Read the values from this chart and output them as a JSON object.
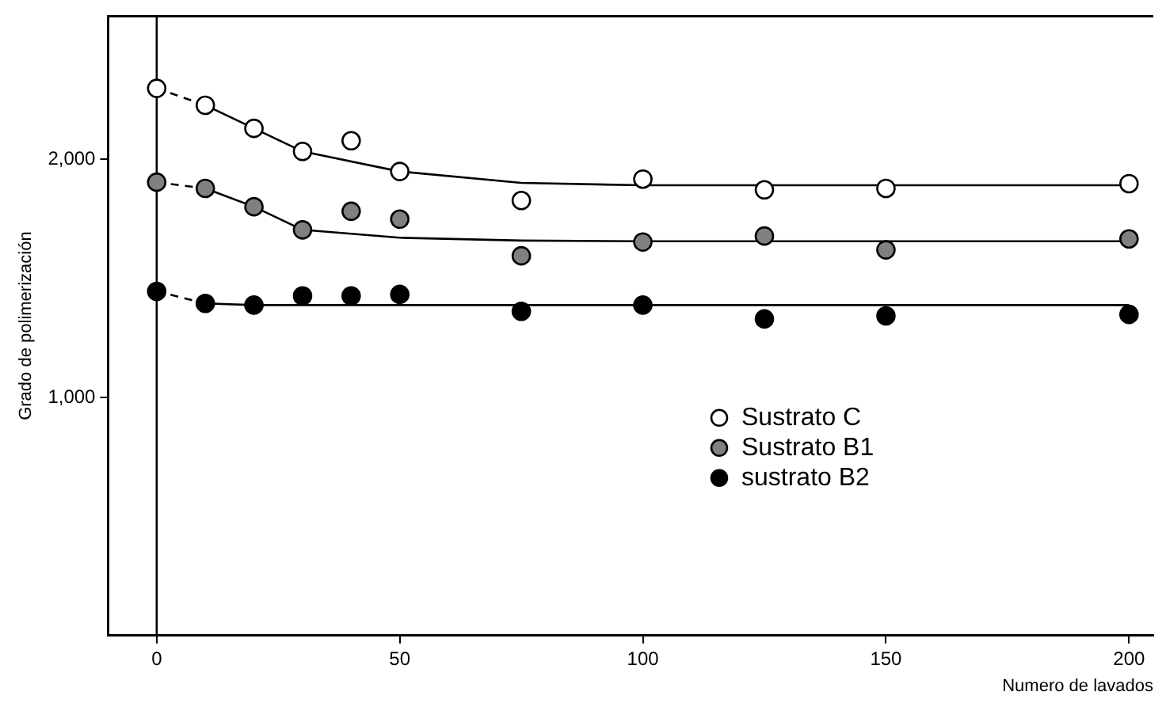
{
  "chart_data": {
    "type": "scatter",
    "xlabel": "Numero de lavados",
    "ylabel": "Grado de polimerización",
    "xlim": [
      -10,
      205
    ],
    "xticks": [
      0,
      50,
      100,
      150,
      200
    ],
    "ylim": [
      0,
      2600
    ],
    "yticks": [
      {
        "value": 1000,
        "label": "1,000"
      },
      {
        "value": 2000,
        "label": "2,000"
      }
    ],
    "grid": false,
    "legend": "bottom right",
    "marker": "circle",
    "ref_lines": [
      {
        "axis": "x",
        "value": 0,
        "label": null
      }
    ],
    "series": [
      {
        "name": "Sustrato C",
        "color": "#ffffff",
        "x": [
          0,
          10,
          20,
          30,
          40,
          50,
          75,
          100,
          125,
          150,
          200
        ],
        "values": [
          2297,
          2226,
          2129,
          2032,
          2077,
          1948,
          1826,
          1916,
          1871,
          1877,
          1897
        ]
      },
      {
        "name": "Sustrato B1",
        "color": "#808080",
        "x": [
          0,
          10,
          20,
          30,
          40,
          50,
          75,
          100,
          125,
          150,
          200
        ],
        "values": [
          1903,
          1877,
          1800,
          1703,
          1781,
          1748,
          1594,
          1652,
          1677,
          1619,
          1665
        ]
      },
      {
        "name": "sustrato B2",
        "color": "#000000",
        "x": [
          0,
          10,
          20,
          30,
          40,
          50,
          75,
          100,
          125,
          150,
          200
        ],
        "values": [
          1445,
          1394,
          1387,
          1426,
          1426,
          1432,
          1361,
          1387,
          1329,
          1342,
          1348
        ]
      },
      {
        "type": "line",
        "color": "#000000",
        "marker": "none",
        "line_style": "dashed",
        "x": [
          0,
          10
        ],
        "values": [
          2297,
          2226
        ]
      },
      {
        "type": "line",
        "color": "#000000",
        "marker": "none",
        "line_style": "dashed",
        "x": [
          0,
          10
        ],
        "values": [
          1903,
          1877
        ]
      },
      {
        "type": "line",
        "color": "#000000",
        "marker": "none",
        "line_style": "dashed",
        "x": [
          0,
          10
        ],
        "values": [
          1445,
          1394
        ]
      },
      {
        "type": "line",
        "color": "#000000",
        "marker": "none",
        "line_style": "solid",
        "x": [
          10,
          20,
          30,
          50,
          75,
          100,
          200
        ],
        "values": [
          2226,
          2129,
          2032,
          1948,
          1900,
          1890,
          1890
        ]
      },
      {
        "type": "line",
        "color": "#000000",
        "marker": "none",
        "line_style": "solid",
        "x": [
          10,
          20,
          30,
          50,
          75,
          100,
          200
        ],
        "values": [
          1877,
          1800,
          1703,
          1670,
          1658,
          1655,
          1655
        ]
      },
      {
        "type": "line",
        "color": "#000000",
        "marker": "none",
        "line_style": "solid",
        "x": [
          10,
          20,
          200
        ],
        "values": [
          1394,
          1387,
          1387
        ]
      }
    ]
  }
}
